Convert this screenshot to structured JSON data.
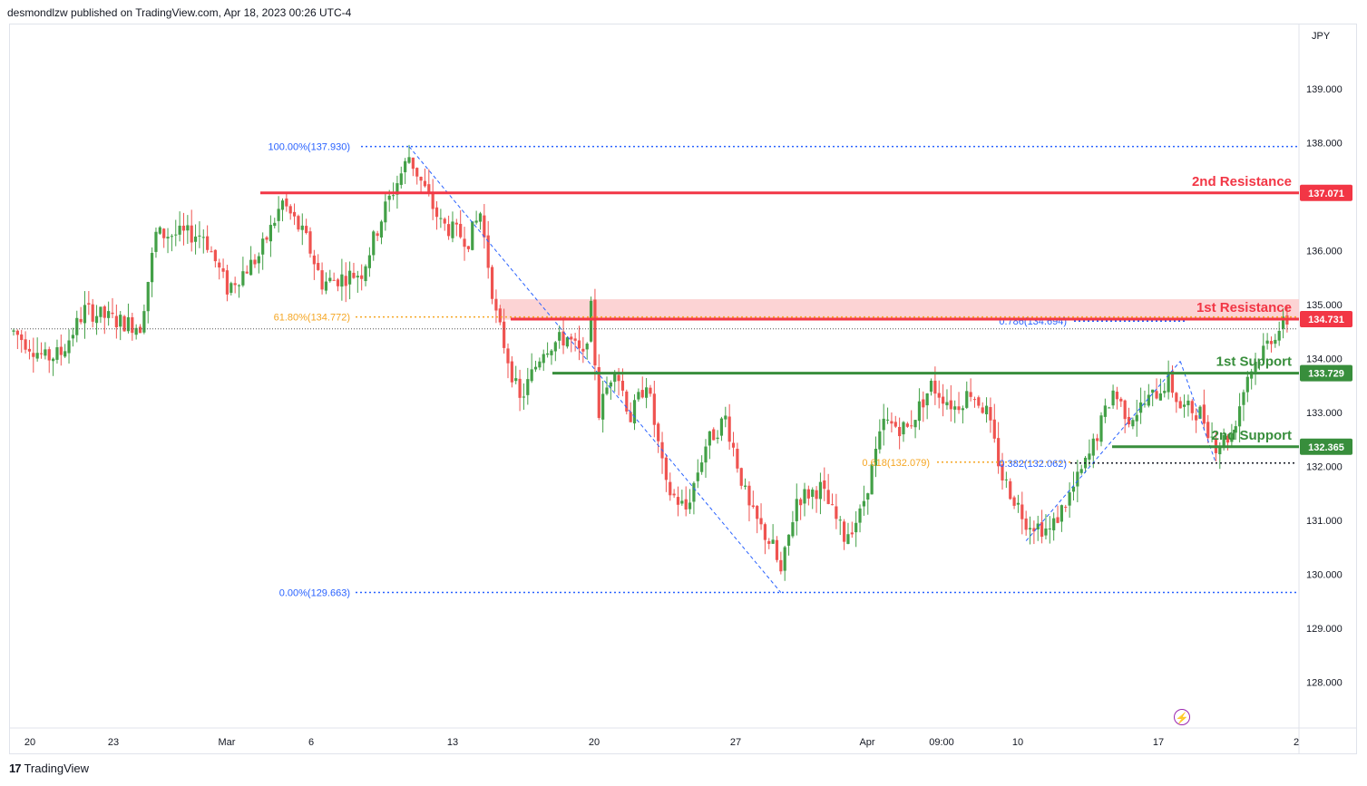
{
  "header": {
    "publisher": "desmondlzw published on TradingView.com, Apr 18, 2023 00:26 UTC-4"
  },
  "footer": {
    "brand": "TradingView",
    "logo_mark": "17"
  },
  "currency": "JPY",
  "icons": {
    "bolt": "lightning-icon"
  },
  "colors": {
    "up": "#43a047",
    "down": "#ef5350",
    "resistance": "#f23645",
    "support": "#388e3c",
    "fib": "#2962ff",
    "fib_orange": "#f5a623",
    "zone": "#fccbcd"
  },
  "chart_data": {
    "type": "candlestick",
    "ylim": [
      127.5,
      139.75
    ],
    "y_ticks": [
      "139.000",
      "138.000",
      "137.000",
      "136.000",
      "135.000",
      "134.000",
      "133.000",
      "132.000",
      "131.000",
      "130.000",
      "129.000",
      "128.000"
    ],
    "x_ticks": [
      "20",
      "23",
      "Mar",
      "6",
      "13",
      "20",
      "27",
      "Apr",
      "09:00",
      "10",
      "17",
      "2"
    ],
    "levels": [
      {
        "name": "2nd Resistance",
        "value": 137.071,
        "label": "137.071",
        "type": "resistance"
      },
      {
        "name": "1st Resistance",
        "value": 134.731,
        "label": "134.731",
        "type": "resistance"
      },
      {
        "name": "1st Support",
        "value": 133.729,
        "label": "133.729",
        "type": "support"
      },
      {
        "name": "2nd Support",
        "value": 132.365,
        "label": "132.365",
        "type": "support"
      }
    ],
    "resistance_zone": [
      134.72,
      135.1
    ],
    "fib_labels": [
      {
        "text": "100.00%(137.930)",
        "value": 137.93
      },
      {
        "text": "61.80%(134.772)",
        "value": 134.772
      },
      {
        "text": "0.00%(129.663)",
        "value": 129.663
      },
      {
        "text": "0.786(134.694)",
        "value": 134.694
      },
      {
        "text": "0.618(132.079)",
        "value": 132.079
      },
      {
        "text": "0.382(132.062)",
        "value": 132.062
      }
    ],
    "last_price": 134.55,
    "anchors": [
      [
        0,
        134.5
      ],
      [
        8,
        134.0
      ],
      [
        12,
        134.1
      ],
      [
        18,
        134.9
      ],
      [
        26,
        134.7
      ],
      [
        32,
        134.6
      ],
      [
        36,
        136.3
      ],
      [
        48,
        136.3
      ],
      [
        54,
        135.3
      ],
      [
        62,
        135.9
      ],
      [
        68,
        136.9
      ],
      [
        74,
        136.2
      ],
      [
        78,
        135.4
      ],
      [
        88,
        135.6
      ],
      [
        94,
        136.8
      ],
      [
        100,
        137.75
      ],
      [
        108,
        136.5
      ],
      [
        115,
        136.2
      ],
      [
        118,
        136.7
      ],
      [
        122,
        134.8
      ],
      [
        128,
        133.2
      ],
      [
        134,
        134.2
      ],
      [
        140,
        134.4
      ],
      [
        144,
        134.0
      ],
      [
        146,
        134.9
      ],
      [
        148,
        133.0
      ],
      [
        152,
        133.9
      ],
      [
        156,
        132.9
      ],
      [
        160,
        133.6
      ],
      [
        165,
        131.6
      ],
      [
        170,
        131.2
      ],
      [
        175,
        132.4
      ],
      [
        180,
        132.9
      ],
      [
        186,
        131.2
      ],
      [
        192,
        130.5
      ],
      [
        194,
        130.0
      ],
      [
        198,
        131.4
      ],
      [
        204,
        131.6
      ],
      [
        210,
        130.7
      ],
      [
        214,
        131.1
      ],
      [
        220,
        132.8
      ],
      [
        226,
        132.7
      ],
      [
        232,
        133.5
      ],
      [
        238,
        133.1
      ],
      [
        242,
        133.4
      ],
      [
        246,
        133.0
      ],
      [
        250,
        131.8
      ],
      [
        256,
        131.0
      ],
      [
        262,
        130.8
      ],
      [
        268,
        131.6
      ],
      [
        272,
        132.2
      ],
      [
        278,
        133.4
      ],
      [
        282,
        132.9
      ],
      [
        288,
        133.3
      ],
      [
        292,
        133.6
      ],
      [
        295,
        133.1
      ],
      [
        300,
        133.0
      ],
      [
        304,
        132.4
      ],
      [
        308,
        132.6
      ],
      [
        312,
        133.7
      ],
      [
        318,
        134.4
      ],
      [
        322,
        134.7
      ]
    ],
    "fib_lines": [
      {
        "from": [
          100,
          137.93
        ],
        "to": [
          194,
          129.663
        ]
      },
      {
        "from": [
          256,
          130.62
        ],
        "to": [
          295,
          133.95
        ]
      },
      {
        "from": [
          295,
          133.95
        ],
        "to": [
          304,
          132.06
        ]
      }
    ]
  }
}
